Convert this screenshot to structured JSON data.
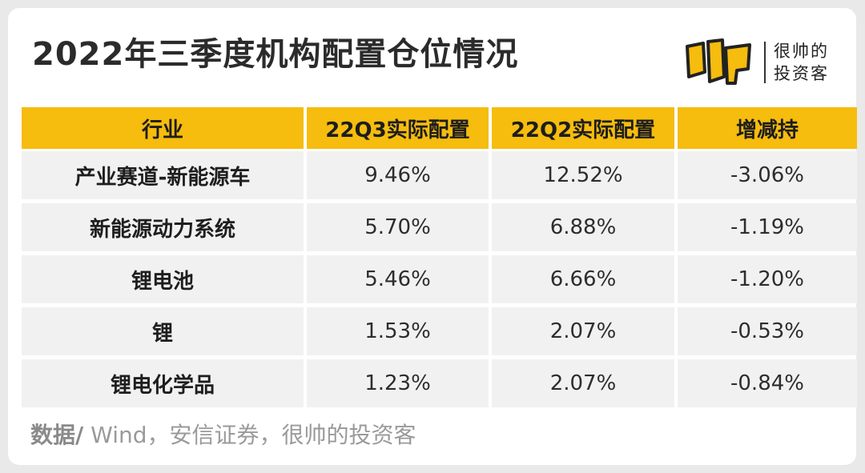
{
  "title": "2022年三季度机构配置仓位情况",
  "brand": {
    "logo_text": "帅",
    "line1": "很帅的",
    "line2": "投资客",
    "accent_color": "#f6bc0e"
  },
  "table": {
    "headers": [
      "行业",
      "22Q3实际配置",
      "22Q2实际配置",
      "增减持"
    ],
    "rows": [
      [
        "产业赛道-新能源车",
        "9.46%",
        "12.52%",
        "-3.06%"
      ],
      [
        "新能源动力系统",
        "5.70%",
        "6.88%",
        "-1.19%"
      ],
      [
        "锂电池",
        "5.46%",
        "6.66%",
        "-1.20%"
      ],
      [
        "锂",
        "1.53%",
        "2.07%",
        "-0.53%"
      ],
      [
        "锂电化学品",
        "1.23%",
        "2.07%",
        "-0.84%"
      ]
    ]
  },
  "source": {
    "label": "数据/",
    "text": " Wind，安信证券，很帅的投资客"
  }
}
